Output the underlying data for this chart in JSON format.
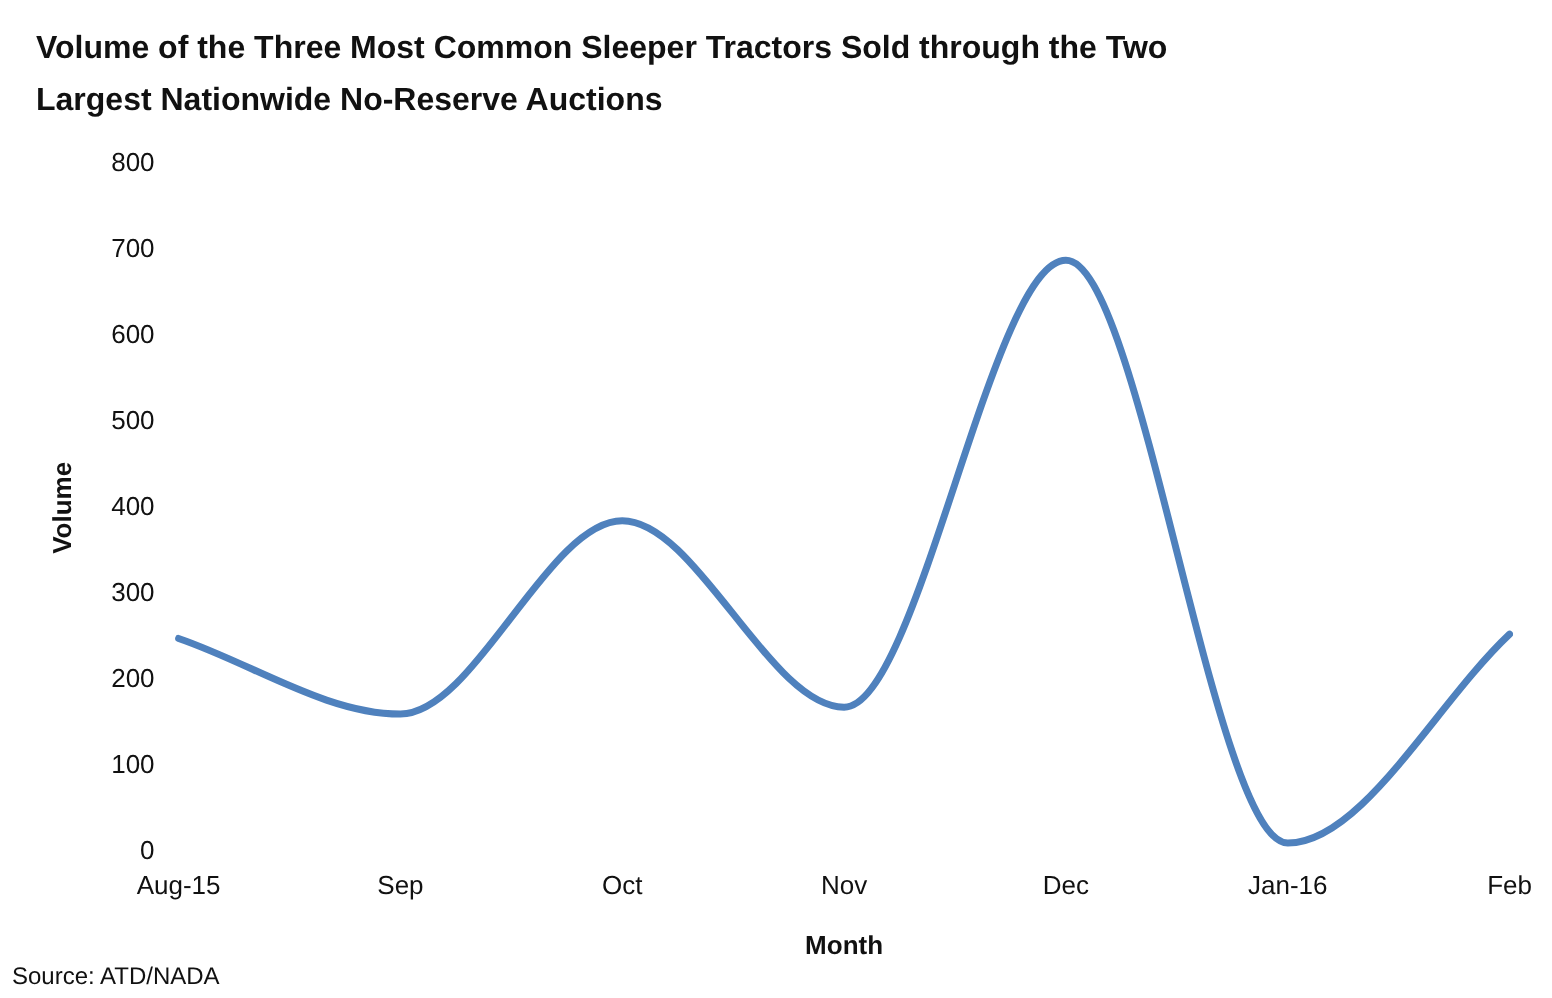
{
  "chart_data": {
    "type": "line",
    "title": "Volume of the Three Most Common Sleeper Tractors Sold through the Two Largest Nationwide No-Reserve Auctions",
    "xlabel": "Month",
    "ylabel": "Volume",
    "categories": [
      "Aug-15",
      "Sep",
      "Oct",
      "Nov",
      "Dec",
      "Jan-16",
      "Feb"
    ],
    "series": [
      {
        "color": "#4f81bd",
        "values": [
          248,
          160,
          385,
          168,
          688,
          10,
          253
        ]
      }
    ],
    "ylim": [
      0,
      800
    ],
    "yticks": [
      0,
      100,
      200,
      300,
      400,
      500,
      600,
      700,
      800
    ],
    "grid": false,
    "legend": false,
    "marker": "none",
    "line_style": "solid",
    "annotations": [
      "Source: ATD/NADA"
    ]
  }
}
